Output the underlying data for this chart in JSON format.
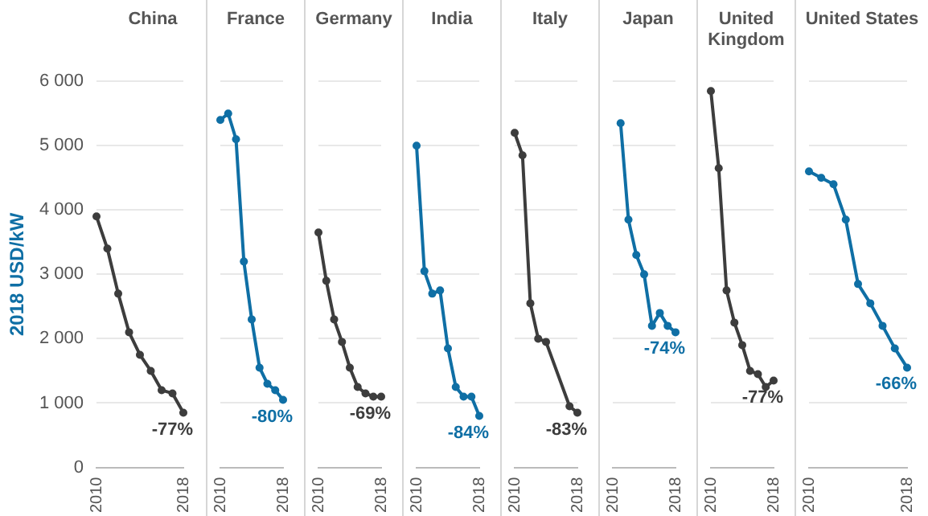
{
  "chart_data": [
    {
      "type": "line",
      "title": "China",
      "ylabel": "2018 USD/kW",
      "categories": [
        "2010",
        null,
        null,
        null,
        null,
        null,
        null,
        null,
        "2018"
      ],
      "series": [
        {
          "color": "#3d3d3d",
          "values": [
            3900,
            3400,
            2700,
            2100,
            1750,
            1500,
            1200,
            1150,
            850
          ]
        }
      ],
      "ylim": [
        0,
        6000
      ],
      "yticks": [
        0,
        {
          "value": 1000,
          "label": "1 000"
        },
        {
          "value": 2000,
          "label": "2 000"
        },
        {
          "value": 3000,
          "label": "3 000"
        },
        {
          "value": 4000,
          "label": "4 000"
        },
        {
          "value": 5000,
          "label": "5 000"
        },
        {
          "value": 6000,
          "label": "6 000"
        }
      ],
      "grid": "y",
      "marker": "circle",
      "annotations": [
        {
          "text": "-77%",
          "x": "2018",
          "y": 850
        }
      ]
    },
    {
      "type": "line",
      "title": "France",
      "categories": [
        "2010",
        null,
        null,
        null,
        null,
        null,
        null,
        null,
        "2018"
      ],
      "series": [
        {
          "color": "#0f6fa5",
          "values": [
            5400,
            5500,
            5100,
            3200,
            2300,
            1550,
            1300,
            1200,
            1050
          ]
        }
      ],
      "ylim": [
        0,
        6000
      ],
      "yticks": [
        0,
        1000,
        2000,
        3000,
        4000,
        5000,
        6000
      ],
      "tick_labels": "x",
      "grid": "y",
      "marker": "circle",
      "annotations": [
        {
          "text": "-80%",
          "x": "2018",
          "y": 1050
        }
      ]
    },
    {
      "type": "line",
      "title": "Germany",
      "categories": [
        "2010",
        null,
        null,
        null,
        null,
        null,
        null,
        null,
        "2018"
      ],
      "series": [
        {
          "color": "#3d3d3d",
          "values": [
            3650,
            2900,
            2300,
            1950,
            1550,
            1250,
            1150,
            1100,
            1100
          ]
        }
      ],
      "ylim": [
        0,
        6000
      ],
      "yticks": [
        0,
        1000,
        2000,
        3000,
        4000,
        5000,
        6000
      ],
      "tick_labels": "x",
      "grid": "y",
      "marker": "circle",
      "annotations": [
        {
          "text": "-69%",
          "x": "2018",
          "y": 1100
        }
      ]
    },
    {
      "type": "line",
      "title": "India",
      "categories": [
        "2010",
        null,
        null,
        null,
        null,
        null,
        null,
        null,
        "2018"
      ],
      "series": [
        {
          "color": "#0f6fa5",
          "values": [
            5000,
            3050,
            2700,
            2750,
            1850,
            1250,
            1100,
            1100,
            800
          ]
        }
      ],
      "ylim": [
        0,
        6000
      ],
      "yticks": [
        0,
        1000,
        2000,
        3000,
        4000,
        5000,
        6000
      ],
      "tick_labels": "x",
      "grid": "y",
      "marker": "circle",
      "annotations": [
        {
          "text": "-84%",
          "x": "2018",
          "y": 800
        }
      ]
    },
    {
      "type": "line",
      "title": "Italy",
      "categories": [
        "2010",
        null,
        null,
        null,
        null,
        null,
        null,
        null,
        "2018"
      ],
      "series": [
        {
          "color": "#3d3d3d",
          "values": [
            5200,
            4850,
            2550,
            2000,
            1950,
            null,
            null,
            950,
            850
          ]
        }
      ],
      "ylim": [
        0,
        6000
      ],
      "yticks": [
        0,
        1000,
        2000,
        3000,
        4000,
        5000,
        6000
      ],
      "tick_labels": "x",
      "grid": "y",
      "marker": "circle",
      "annotations": [
        {
          "text": "-83%",
          "x": "2018",
          "y": 850
        }
      ]
    },
    {
      "type": "line",
      "title": "Japan",
      "categories": [
        "2010",
        null,
        null,
        null,
        null,
        null,
        null,
        null,
        "2018"
      ],
      "series": [
        {
          "color": "#0f6fa5",
          "values": [
            null,
            5350,
            3850,
            3300,
            3000,
            2200,
            2400,
            2200,
            2100
          ]
        }
      ],
      "ylim": [
        0,
        6000
      ],
      "yticks": [
        0,
        1000,
        2000,
        3000,
        4000,
        5000,
        6000
      ],
      "tick_labels": "x",
      "grid": "y",
      "marker": "circle",
      "annotations": [
        {
          "text": "-74%",
          "x": "2018",
          "y": 2100
        }
      ]
    },
    {
      "type": "line",
      "title": "United Kingdom",
      "categories": [
        "2010",
        null,
        null,
        null,
        null,
        null,
        null,
        null,
        "2018"
      ],
      "series": [
        {
          "color": "#3d3d3d",
          "values": [
            5850,
            4650,
            2750,
            2250,
            1900,
            1500,
            1450,
            1250,
            1350
          ]
        }
      ],
      "ylim": [
        0,
        6000
      ],
      "yticks": [
        0,
        1000,
        2000,
        3000,
        4000,
        5000,
        6000
      ],
      "tick_labels": "x",
      "grid": "y",
      "marker": "circle",
      "annotations": [
        {
          "text": "-77%",
          "x": "2018",
          "y": 1350
        }
      ]
    },
    {
      "type": "line",
      "title": "United States",
      "categories": [
        "2010",
        null,
        null,
        null,
        null,
        null,
        null,
        null,
        "2018"
      ],
      "series": [
        {
          "color": "#0f6fa5",
          "values": [
            4600,
            4500,
            4400,
            3850,
            2850,
            2550,
            2200,
            1850,
            1550
          ]
        }
      ],
      "ylim": [
        0,
        6000
      ],
      "yticks": [
        0,
        1000,
        2000,
        3000,
        4000,
        5000,
        6000
      ],
      "tick_labels": "x",
      "grid": "y",
      "marker": "circle",
      "annotations": [
        {
          "text": "-66%",
          "x": "2018",
          "y": 1550
        }
      ]
    }
  ]
}
